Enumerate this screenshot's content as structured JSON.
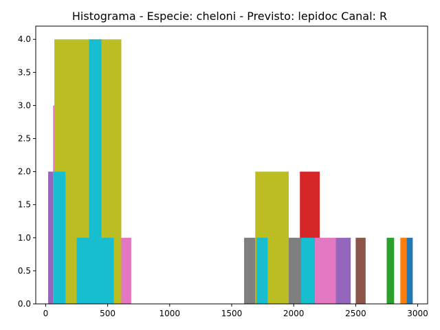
{
  "chart_data": {
    "type": "bar",
    "title": "Histograma - Especie: cheloni - Previsto: lepidoc Canal: R",
    "xlabel": "",
    "ylabel": "",
    "xlim": [
      -80,
      3080
    ],
    "ylim": [
      0,
      4.2
    ],
    "xticks": [
      0,
      500,
      1000,
      1500,
      2000,
      2500,
      3000
    ],
    "yticks": [
      0.0,
      0.5,
      1.0,
      1.5,
      2.0,
      2.5,
      3.0,
      3.5,
      4.0
    ],
    "grid": false,
    "legend": "none",
    "bars": [
      {
        "x0": 2910,
        "x1": 2960,
        "value": 1,
        "color": "#1f77b4"
      },
      {
        "x0": 2860,
        "x1": 2910,
        "value": 1,
        "color": "#ff7f0e"
      },
      {
        "x0": 2750,
        "x1": 2810,
        "value": 1,
        "color": "#2ca02c"
      },
      {
        "x0": 2050,
        "x1": 2210,
        "value": 2,
        "color": "#d62728"
      },
      {
        "x0": 2330,
        "x1": 2460,
        "value": 1,
        "color": "#9467bd"
      },
      {
        "x0": 2500,
        "x1": 2580,
        "value": 1,
        "color": "#8c564b"
      },
      {
        "x0": 2170,
        "x1": 2340,
        "value": 1,
        "color": "#e377c2"
      },
      {
        "x0": 1600,
        "x1": 1700,
        "value": 1,
        "color": "#7f7f7f"
      },
      {
        "x0": 1950,
        "x1": 2060,
        "value": 1,
        "color": "#7f7f7f"
      },
      {
        "x0": 1690,
        "x1": 1960,
        "value": 2,
        "color": "#bcbd22"
      },
      {
        "x0": 1700,
        "x1": 1790,
        "value": 1,
        "color": "#17becf"
      },
      {
        "x0": 2060,
        "x1": 2170,
        "value": 1,
        "color": "#17becf"
      },
      {
        "x0": 20,
        "x1": 60,
        "value": 2,
        "color": "#9467bd"
      },
      {
        "x0": 60,
        "x1": 80,
        "value": 3,
        "color": "#e377c2"
      },
      {
        "x0": 600,
        "x1": 690,
        "value": 1,
        "color": "#e377c2"
      },
      {
        "x0": 70,
        "x1": 610,
        "value": 4,
        "color": "#bcbd22"
      },
      {
        "x0": 60,
        "x1": 160,
        "value": 2,
        "color": "#17becf"
      },
      {
        "x0": 250,
        "x1": 550,
        "value": 1,
        "color": "#17becf"
      },
      {
        "x0": 350,
        "x1": 450,
        "value": 4,
        "color": "#17becf"
      }
    ]
  }
}
